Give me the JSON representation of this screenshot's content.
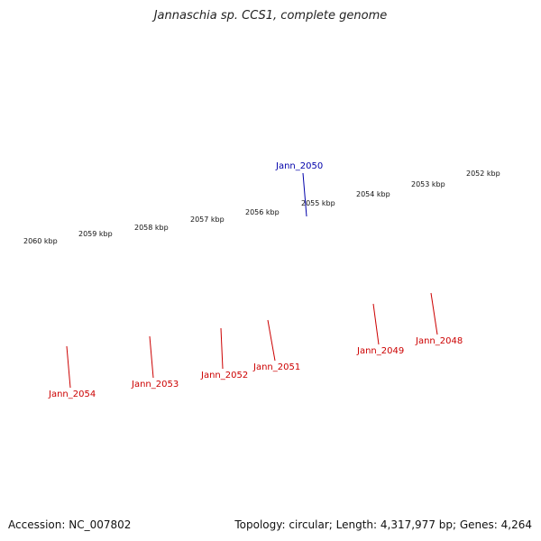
{
  "title": "Jannaschia sp. CCS1, complete genome",
  "footer": {
    "accession": "Accession: NC_007802",
    "info": "Topology: circular; Length: 4,317,977 bp; Genes: 4,264"
  },
  "colors": {
    "backbone": "#7a7a7a",
    "tick": "#1a7a1a",
    "gene_red": "#ee0000",
    "gene_steel": "#4a7fb0",
    "gene_blue": "#0000ee",
    "gene_orange": "#f08c00",
    "gene_gray": "#b8b8b8",
    "gene_purple": "#4b3a8c",
    "label_red": "#cc0000",
    "label_blue": "#0000aa"
  },
  "scale_labels": [
    "2060 kbp",
    "2059 kbp",
    "2058 kbp",
    "2057 kbp",
    "2056 kbp",
    "2055 kbp",
    "2054 kbp",
    "2053 kbp",
    "2052 kbp"
  ],
  "gene_labels": [
    {
      "name": "Jann_2050",
      "color": "blue"
    },
    {
      "name": "Jann_2054",
      "color": "red"
    },
    {
      "name": "Jann_2053",
      "color": "red"
    },
    {
      "name": "Jann_2052",
      "color": "red"
    },
    {
      "name": "Jann_2051",
      "color": "red"
    },
    {
      "name": "Jann_2049",
      "color": "red"
    },
    {
      "name": "Jann_2048",
      "color": "red"
    }
  ]
}
